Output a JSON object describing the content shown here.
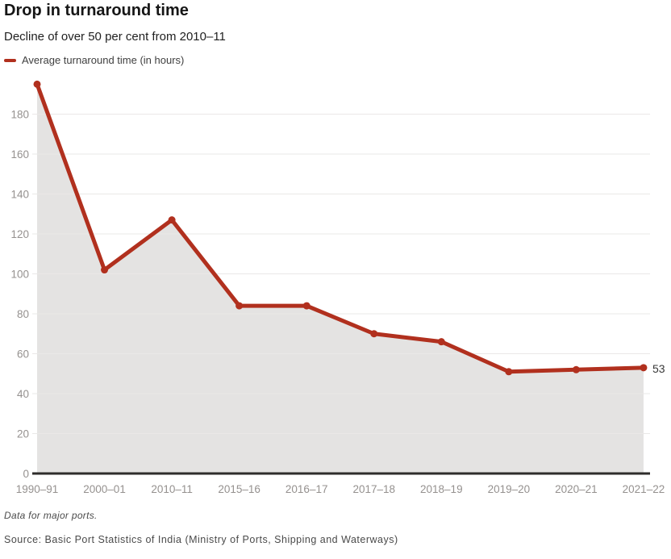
{
  "header": {
    "title": "Drop in turnaround time",
    "subtitle": "Decline of over 50 per cent from 2010–11"
  },
  "legend": {
    "label": "Average turnaround time (in hours)"
  },
  "colors": {
    "line": "#b1301e",
    "area": "#e4e3e2",
    "grid": "#eae8e7",
    "axis": "#2e2c2b",
    "tick_label": "#95918f",
    "annotation": "#383838"
  },
  "chart_data": {
    "type": "line",
    "title": "Drop in turnaround time",
    "subtitle": "Decline of over 50 per cent from 2010–11",
    "series_name": "Average turnaround time (in hours)",
    "categories": [
      "1990–91",
      "2000–01",
      "2010–11",
      "2015–16",
      "2016–17",
      "2017–18",
      "2018–19",
      "2019–20",
      "2020–21",
      "2021–22"
    ],
    "values": [
      195,
      102,
      127,
      84,
      84,
      70,
      66,
      51,
      52,
      53
    ],
    "xlabel": "",
    "ylabel": "",
    "ylim": [
      0,
      200
    ],
    "yticks": [
      0,
      20,
      40,
      60,
      80,
      100,
      120,
      140,
      160,
      180
    ],
    "grid": true,
    "area_fill": true,
    "markers": true,
    "end_label": "53",
    "legend_position": "top-left"
  },
  "footer": {
    "note": "Data for major ports.",
    "source": "Source: Basic Port Statistics of India (Ministry of Ports, Shipping and Waterways)"
  }
}
